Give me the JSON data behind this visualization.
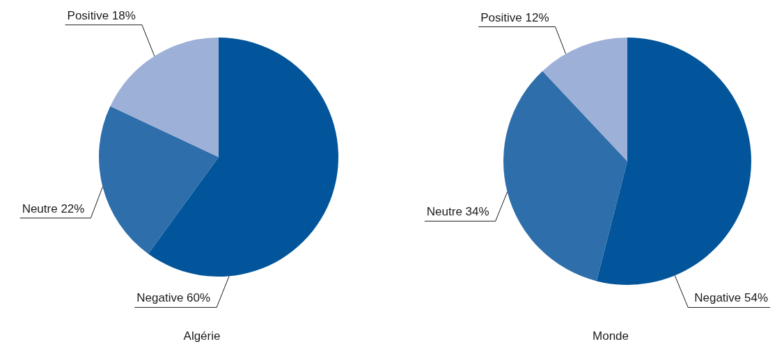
{
  "chart_data": [
    {
      "type": "pie",
      "title": "Algérie",
      "categories": [
        "Negative",
        "Neutre",
        "Positive"
      ],
      "values": [
        60,
        22,
        18
      ],
      "colors": [
        "#02559a",
        "#2e6eab",
        "#9db0d7"
      ],
      "value_labels": [
        "60%",
        "22%",
        "18%"
      ]
    },
    {
      "type": "pie",
      "title": "Monde",
      "categories": [
        "Negative",
        "Neutre",
        "Positive"
      ],
      "values": [
        54,
        34,
        12
      ],
      "colors": [
        "#02559a",
        "#2e6eab",
        "#9db0d7"
      ],
      "value_labels": [
        "54%",
        "34%",
        "12%"
      ]
    }
  ]
}
